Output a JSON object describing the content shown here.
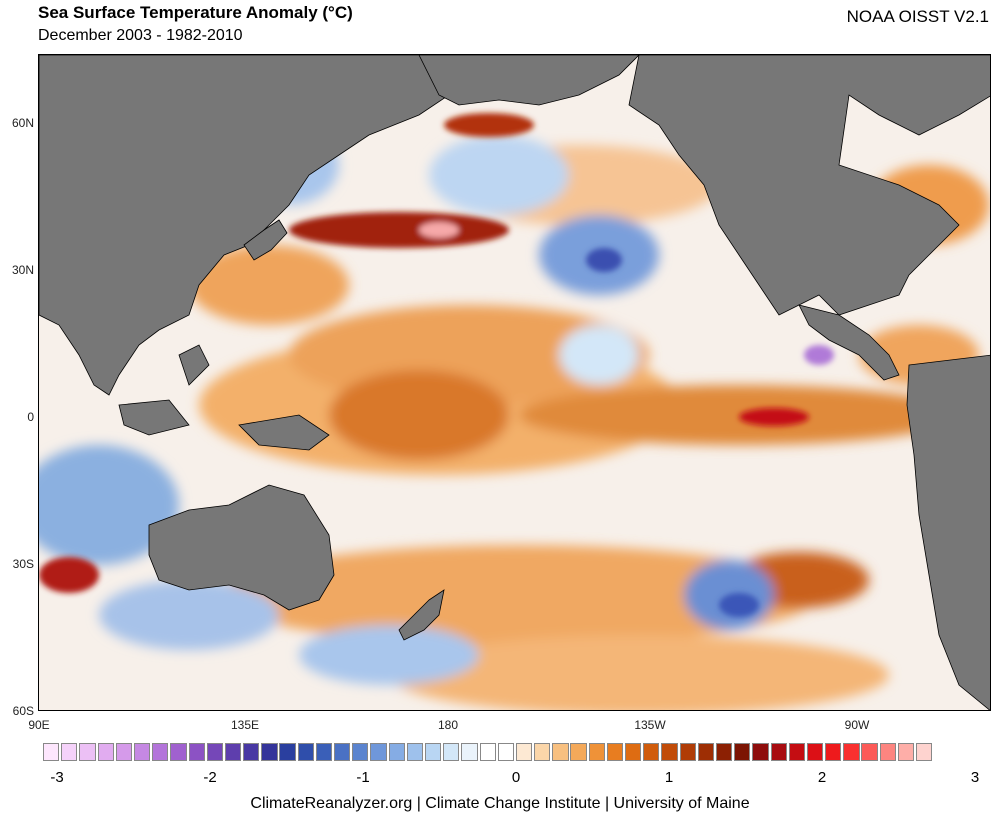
{
  "header": {
    "title": "Sea Surface Temperature Anomaly (°C)",
    "subtitle": "December 2003 - 1982-2010",
    "source": "NOAA OISST V2.1"
  },
  "axes": {
    "lat_labels": [
      "60N",
      "30N",
      "0",
      "30S",
      "60S"
    ],
    "lon_labels": [
      "90E",
      "135E",
      "180",
      "135W",
      "90W"
    ]
  },
  "colorbar": {
    "labels": [
      "-3",
      "-2",
      "-1",
      "0",
      "1",
      "2",
      "3"
    ],
    "colors": [
      "#fde6fd",
      "#f5d2fa",
      "#ecc0f5",
      "#e1acf0",
      "#d59aea",
      "#c588e3",
      "#b374da",
      "#a061cf",
      "#8c52c4",
      "#7547b8",
      "#5e3ead",
      "#4838a3",
      "#34349a",
      "#2a3f9f",
      "#2f4eab",
      "#3a5fb8",
      "#4a71c4",
      "#5b84cf",
      "#6f97da",
      "#85ace4",
      "#9ec1ec",
      "#b9d6f3",
      "#d3e7f8",
      "#eaf3fb",
      "#ffffff",
      "#ffffff",
      "#fde9d3",
      "#fbd6a9",
      "#f8c080",
      "#f4a95a",
      "#ef9238",
      "#e87d20",
      "#de6c12",
      "#d05c0c",
      "#c14c08",
      "#b03c06",
      "#9e2e04",
      "#8c2003",
      "#7c1403",
      "#8e0d0c",
      "#a80c10",
      "#c40d12",
      "#dc1016",
      "#ee1a1c",
      "#f9302f",
      "#fc5a57",
      "#fd8580",
      "#feaea8",
      "#fed3cf"
    ]
  },
  "credit": "ClimateReanalyzer.org | Climate Change Institute | University of Maine"
}
